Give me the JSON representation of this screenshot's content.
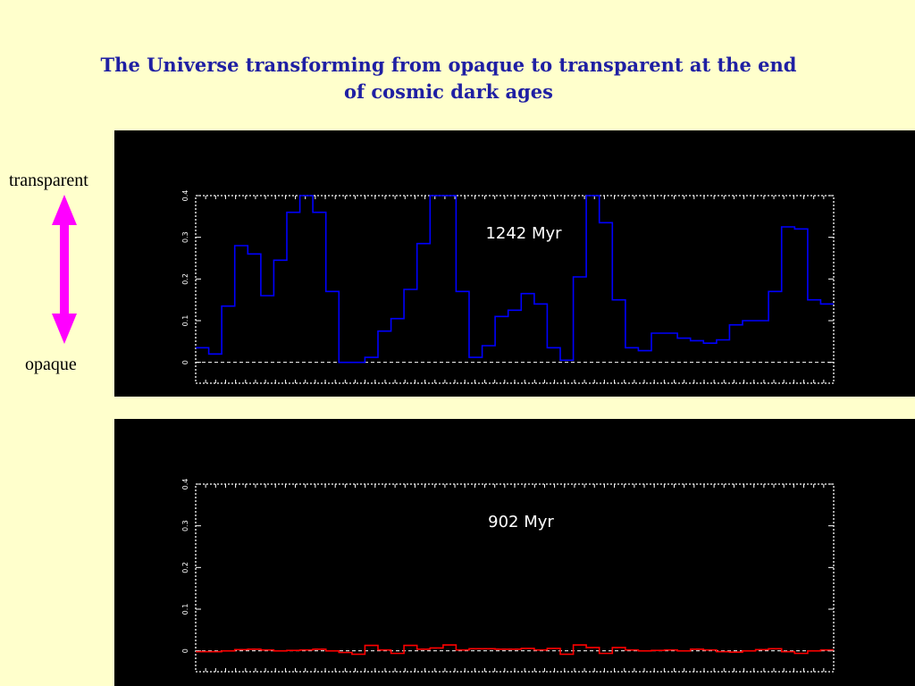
{
  "title": "The Universe transforming from opaque to transparent at the end of cosmic dark ages",
  "labels": {
    "top": "transparent",
    "bottom": "opaque"
  },
  "colors": {
    "background": "#ffffcc",
    "title": "#1f1fa3",
    "arrow": "#ff00ff",
    "panel": "#000000",
    "series_top": "#0000ff",
    "series_bottom": "#ff0000",
    "axes": "#ffffff"
  },
  "chart_data": [
    {
      "type": "line",
      "step": true,
      "label": "1242 Myr",
      "color": "#0000ff",
      "ylim": [
        -0.05,
        0.4
      ],
      "yticks": [
        "0",
        "0.1",
        "0.2",
        "0.3",
        "0.4"
      ],
      "ytick_values": [
        0,
        0.1,
        0.2,
        0.3,
        0.4
      ],
      "grid": false,
      "values": [
        0.035,
        0.02,
        0.135,
        0.28,
        0.26,
        0.16,
        0.245,
        0.36,
        0.4,
        0.36,
        0.17,
        0,
        0,
        0.012,
        0.075,
        0.105,
        0.175,
        0.285,
        0.4,
        0.4,
        0.17,
        0.012,
        0.04,
        0.11,
        0.125,
        0.165,
        0.14,
        0.035,
        0.005,
        0.205,
        0.4,
        0.335,
        0.15,
        0.035,
        0.028,
        0.07,
        0.07,
        0.058,
        0.052,
        0.046,
        0.054,
        0.09,
        0.1,
        0.1,
        0.17,
        0.325,
        0.32,
        0.15,
        0.14
      ]
    },
    {
      "type": "line",
      "step": true,
      "label": "902 Myr",
      "color": "#ff0000",
      "ylim": [
        -0.05,
        0.4
      ],
      "yticks": [
        "0",
        "0.1",
        "0.2",
        "0.3",
        "0.4"
      ],
      "ytick_values": [
        0,
        0.1,
        0.2,
        0.3,
        0.4
      ],
      "grid": false,
      "values": [
        -0.002,
        -0.002,
        0,
        0.003,
        0.004,
        0.002,
        0,
        0.001,
        0.002,
        0.004,
        0,
        -0.004,
        -0.008,
        0.013,
        0.002,
        -0.006,
        0.013,
        0.004,
        0.007,
        0.014,
        0.002,
        0.005,
        0.005,
        0.004,
        0.004,
        0.006,
        0.002,
        0.006,
        -0.008,
        0.014,
        0.008,
        -0.006,
        0.008,
        0.002,
        0,
        0.001,
        0.002,
        0,
        0.004,
        0.002,
        -0.002,
        -0.003,
        0,
        0.003,
        0.005,
        -0.002,
        -0.006,
        0,
        0.002
      ]
    }
  ]
}
